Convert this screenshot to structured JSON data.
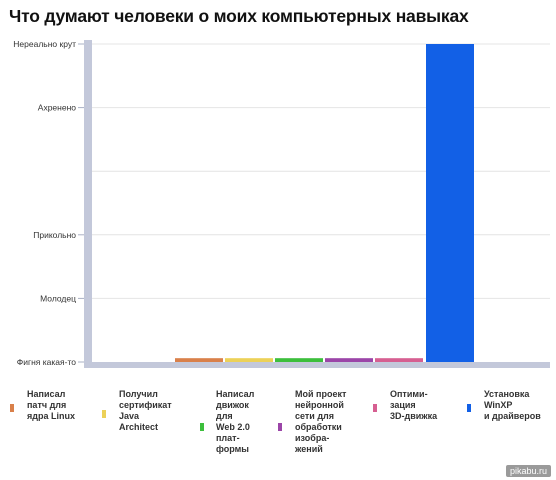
{
  "page_title": "Что думают человеки о моих компьютерных навыках",
  "chart_data": {
    "type": "bar",
    "title": "Что думают человеки о моих компьютерных навыках",
    "y_levels": [
      "Фигня какая-то",
      "Молодец",
      "Прикольно",
      "Ахренено",
      "Нереально крут"
    ],
    "ylim": [
      0,
      5
    ],
    "categories": [
      "Написал\nпатч для\nядра Linux",
      "Получил\nсертификат\nJava\nArchitect",
      "Написал\nдвижок\nдля\nWeb 2.0\nплат-\nформы",
      "Мой проект\nнейронной\nсети для\nобработки\nизобра-\nжений",
      "Оптими-\nзация\n3D-движка",
      "Установка\nWinXP\nи драйверов"
    ],
    "values": [
      0.06,
      0.06,
      0.06,
      0.06,
      0.06,
      5
    ],
    "colors": [
      "#d9804a",
      "#ecd158",
      "#3cbf3c",
      "#9b45a8",
      "#d65f91",
      "#1260e6"
    ],
    "grid": true,
    "legend_position": "bottom"
  },
  "watermark": "pikabu.ru"
}
